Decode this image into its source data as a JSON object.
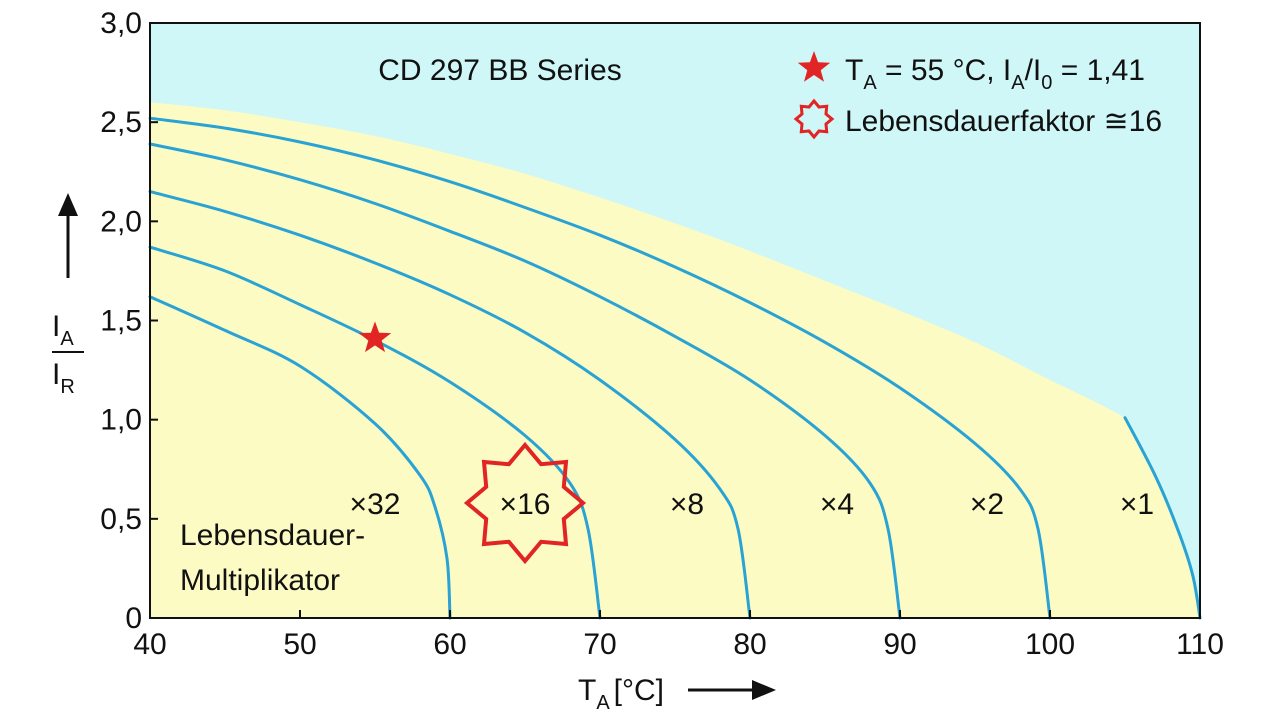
{
  "chart_data": {
    "type": "line",
    "title": "CD 297 BB Series",
    "xlabel_main": "T",
    "xlabel_sub": "A",
    "xlabel_unit": "[°C]",
    "ylabel_num_main": "I",
    "ylabel_num_sub": "A",
    "ylabel_den_main": "I",
    "ylabel_den_sub": "R",
    "xlim": [
      40,
      110
    ],
    "ylim": [
      0,
      3.0
    ],
    "x_ticks": [
      "40",
      "50",
      "60",
      "70",
      "80",
      "90",
      "100",
      "110"
    ],
    "y_ticks": [
      "0",
      "0,5",
      "1,0",
      "1,5",
      "2,0",
      "2,5",
      "3,0"
    ],
    "grid": false,
    "legend": {
      "placement": "top-right",
      "entry1": {
        "t_main": "T",
        "t_sub": "A",
        "t_rest": " = 55 °C, I",
        "i_sub": "A",
        "i_mid": "/I",
        "i0_sub": "0",
        "i_rest": " = 1,41"
      },
      "entry2": "Lebensdauerfaktor ≅16"
    },
    "annotation": {
      "line1": "Lebensdauer-",
      "line2": "Multiplikator"
    },
    "colors": {
      "curve": "#29a3d4",
      "fill_region": "#fdfbc4",
      "background": "#cff7f7",
      "marker": "#e12424"
    },
    "operating_point": {
      "x": 55,
      "y": 1.41
    },
    "series": [
      {
        "name": "×32",
        "x": [
          40,
          45,
          50,
          55,
          58,
          59,
          59.8,
          60
        ],
        "y": [
          1.62,
          1.45,
          1.27,
          0.98,
          0.72,
          0.56,
          0.3,
          0
        ]
      },
      {
        "name": "×16",
        "x": [
          40,
          45,
          50,
          55,
          60,
          65,
          68,
          69.2,
          70
        ],
        "y": [
          1.87,
          1.75,
          1.58,
          1.4,
          1.19,
          0.92,
          0.68,
          0.45,
          0
        ]
      },
      {
        "name": "×8",
        "x": [
          40,
          45,
          50,
          55,
          60,
          65,
          70,
          75,
          78,
          79.2,
          80
        ],
        "y": [
          2.15,
          2.05,
          1.93,
          1.79,
          1.63,
          1.44,
          1.2,
          0.9,
          0.65,
          0.45,
          0
        ]
      },
      {
        "name": "×4",
        "x": [
          40,
          45,
          50,
          55,
          60,
          65,
          70,
          75,
          80,
          85,
          88,
          89.2,
          90
        ],
        "y": [
          2.39,
          2.31,
          2.21,
          2.09,
          1.95,
          1.8,
          1.62,
          1.42,
          1.2,
          0.92,
          0.68,
          0.45,
          0
        ]
      },
      {
        "name": "×2",
        "x": [
          40,
          45,
          50,
          55,
          60,
          65,
          70,
          75,
          80,
          85,
          90,
          95,
          98,
          99.2,
          100
        ],
        "y": [
          2.52,
          2.47,
          2.4,
          2.31,
          2.2,
          2.07,
          1.93,
          1.77,
          1.59,
          1.39,
          1.16,
          0.88,
          0.65,
          0.45,
          0
        ]
      },
      {
        "name": "×1",
        "x": [
          105,
          107,
          108.5,
          109.5,
          110
        ],
        "y": [
          1.01,
          0.72,
          0.45,
          0.22,
          0
        ]
      }
    ],
    "envelope": {
      "x": [
        40,
        45,
        50,
        55,
        60,
        65,
        70,
        75,
        80,
        85,
        90,
        95,
        100,
        103,
        105
      ],
      "y": [
        2.6,
        2.56,
        2.5,
        2.43,
        2.34,
        2.24,
        2.12,
        1.99,
        1.85,
        1.7,
        1.55,
        1.39,
        1.2,
        1.09,
        1.01
      ]
    },
    "multiplier_labels": [
      {
        "text": "×32",
        "x": 55,
        "y": 0.58
      },
      {
        "text": "×16",
        "x": 65,
        "y": 0.58
      },
      {
        "text": "×8",
        "x": 75.8,
        "y": 0.58
      },
      {
        "text": "×4",
        "x": 85.8,
        "y": 0.58
      },
      {
        "text": "×2",
        "x": 95.8,
        "y": 0.58
      },
      {
        "text": "×1",
        "x": 105.8,
        "y": 0.58
      }
    ]
  }
}
